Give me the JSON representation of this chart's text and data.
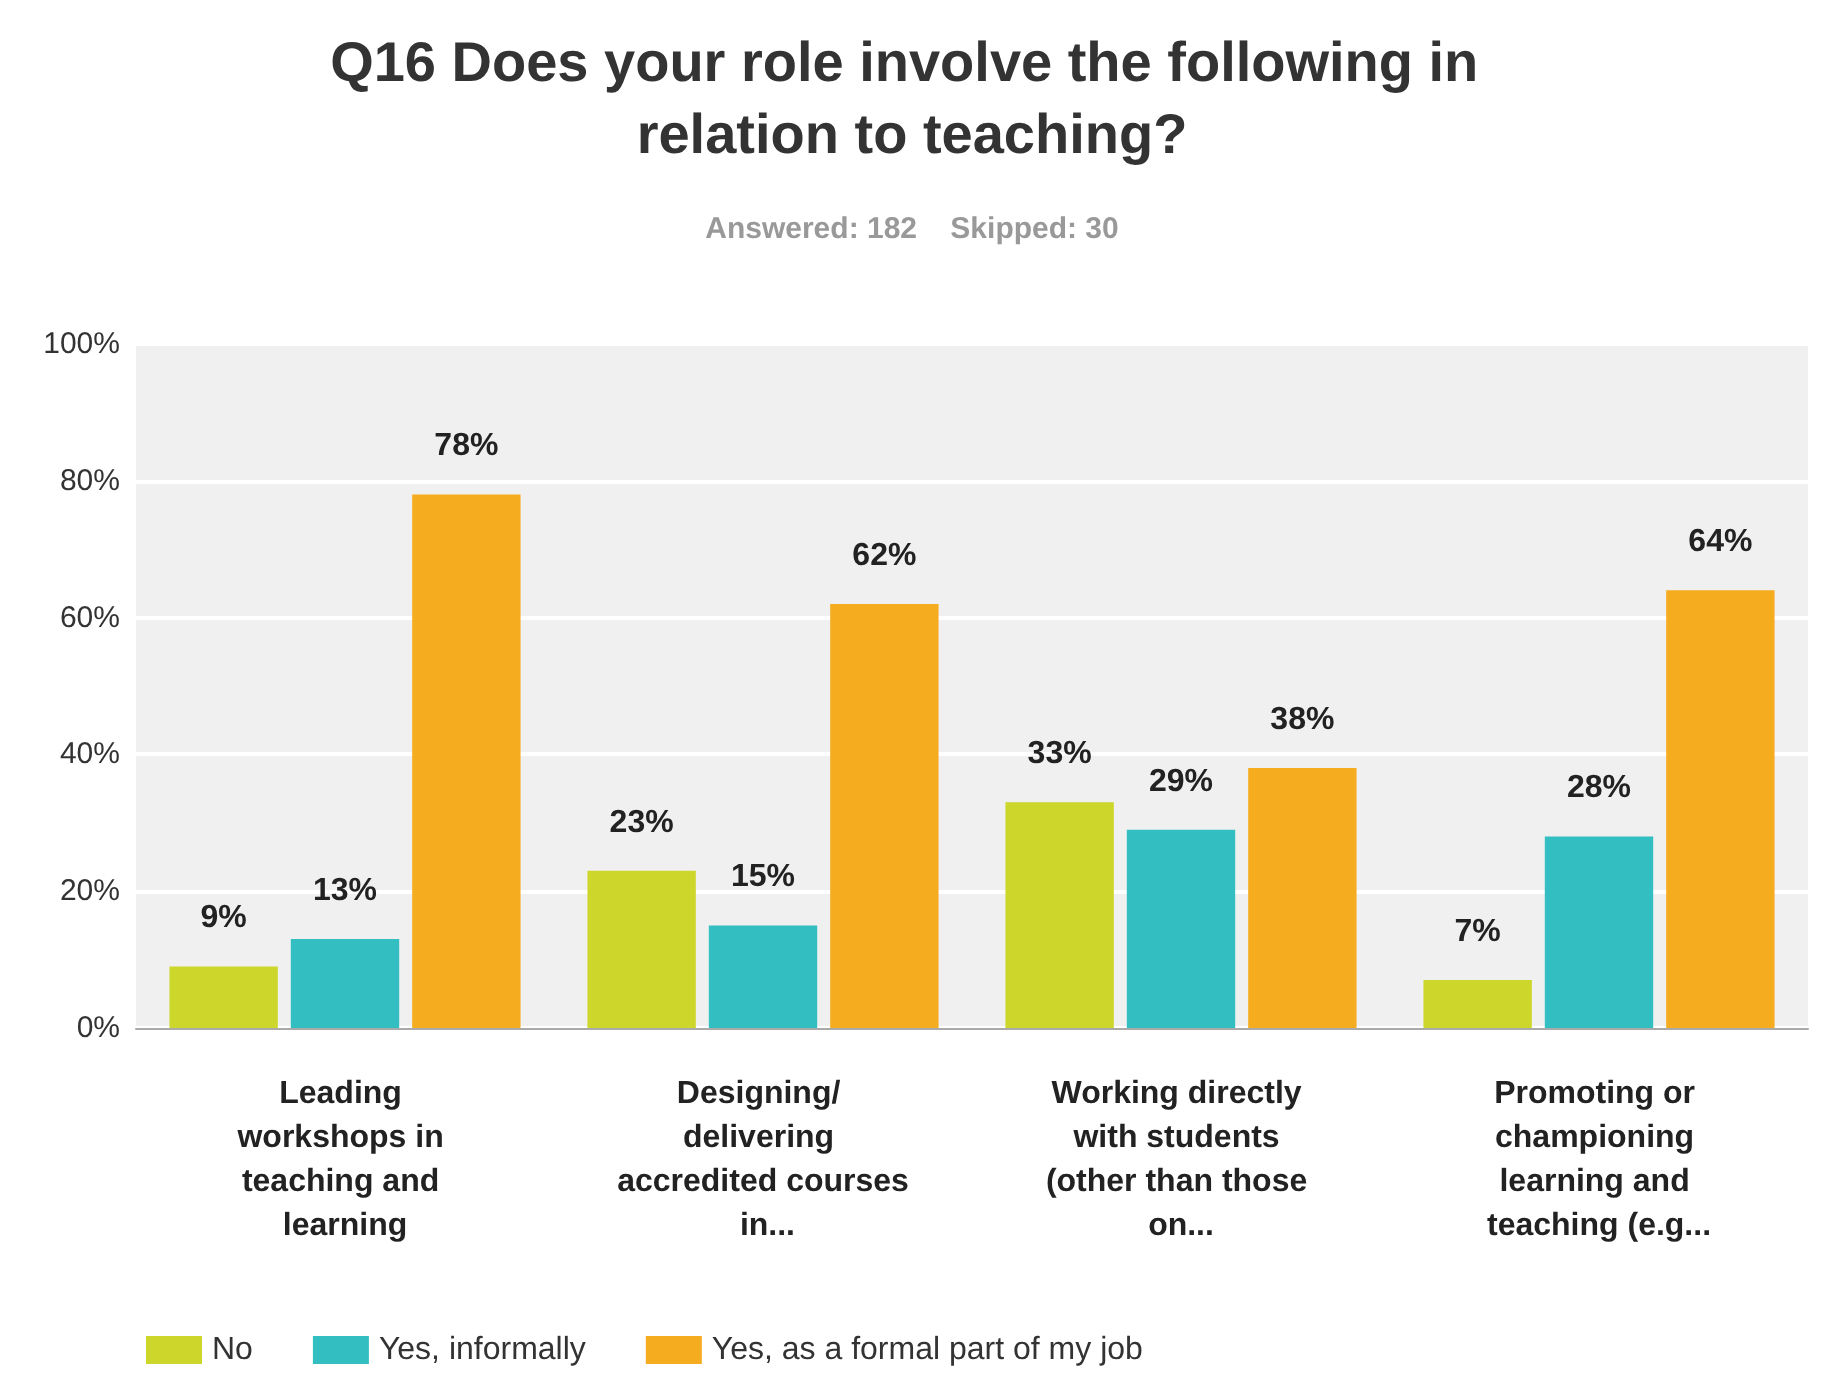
{
  "chart_data": {
    "type": "bar",
    "title": "Q16 Does your role involve the following in relation to teaching?",
    "subtitle": "Answered: 182    Skipped: 30",
    "categories": [
      "Leading workshops in teaching and learning",
      "Designing/ delivering accredited courses in...",
      "Working directly with students (other than those on...",
      "Promoting or championing learning and teaching (e.g..."
    ],
    "series": [
      {
        "name": "No",
        "color": "#cdd62b",
        "values": [
          9,
          23,
          33,
          7
        ],
        "value_labels": [
          "9%",
          "23%",
          "33%",
          "7%"
        ]
      },
      {
        "name": "Yes, informally",
        "color": "#33bec1",
        "values": [
          13,
          15,
          29,
          28
        ],
        "value_labels": [
          "13%",
          "15%",
          "29%",
          "28%"
        ]
      },
      {
        "name": "Yes, as a formal part of my job",
        "color": "#f6ac1f",
        "values": [
          78,
          62,
          38,
          64
        ],
        "value_labels": [
          "78%",
          "62%",
          "38%",
          "64%"
        ]
      }
    ],
    "ylim": [
      0,
      100
    ],
    "yticks": [
      {
        "value": 0,
        "label": "0%"
      },
      {
        "value": 20,
        "label": "20%"
      },
      {
        "value": 40,
        "label": "40%"
      },
      {
        "value": 60,
        "label": "60%"
      },
      {
        "value": 80,
        "label": "80%"
      },
      {
        "value": 100,
        "label": "100%"
      }
    ],
    "grid": "y",
    "legend": "bottom left"
  }
}
